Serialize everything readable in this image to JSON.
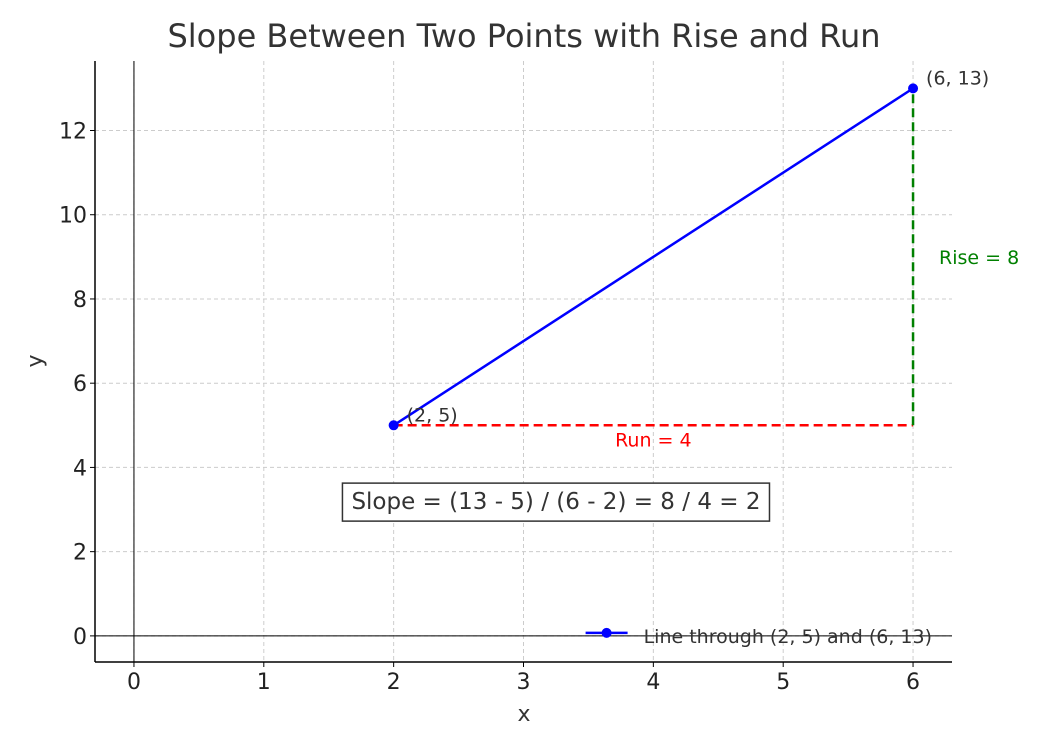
{
  "chart_data": {
    "type": "line",
    "title": "Slope Between Two Points with Rise and Run",
    "xlabel": "x",
    "ylabel": "y",
    "xlim": [
      -0.3,
      6.3
    ],
    "ylim": [
      -0.62,
      13.65
    ],
    "xticks": [
      0,
      1,
      2,
      3,
      4,
      5,
      6
    ],
    "yticks": [
      0,
      2,
      4,
      6,
      8,
      10,
      12
    ],
    "grid": true,
    "legend_position": "lower-right",
    "series": [
      {
        "name": "Line through (2, 5) and (6, 13)",
        "color": "#0000ff",
        "marker": "circle",
        "x": [
          2,
          6
        ],
        "y": [
          5,
          13
        ]
      }
    ],
    "points": [
      {
        "x": 2,
        "y": 5,
        "label": "(2, 5)"
      },
      {
        "x": 6,
        "y": 13,
        "label": "(6, 13)"
      }
    ],
    "run": {
      "x": [
        2,
        6
      ],
      "y": 5,
      "label": "Run = 4",
      "color": "#ff0000",
      "style": "dashed"
    },
    "rise": {
      "x": 6,
      "y": [
        5,
        13
      ],
      "label": "Rise = 8",
      "color": "#008000",
      "style": "dashed"
    },
    "reference_axes": {
      "x": 0,
      "y": 0
    },
    "annotation": {
      "text": "Slope = (13 - 5) / (6 - 2) = 8 / 4 = 2",
      "x": 3.25,
      "y": 3.2
    }
  }
}
